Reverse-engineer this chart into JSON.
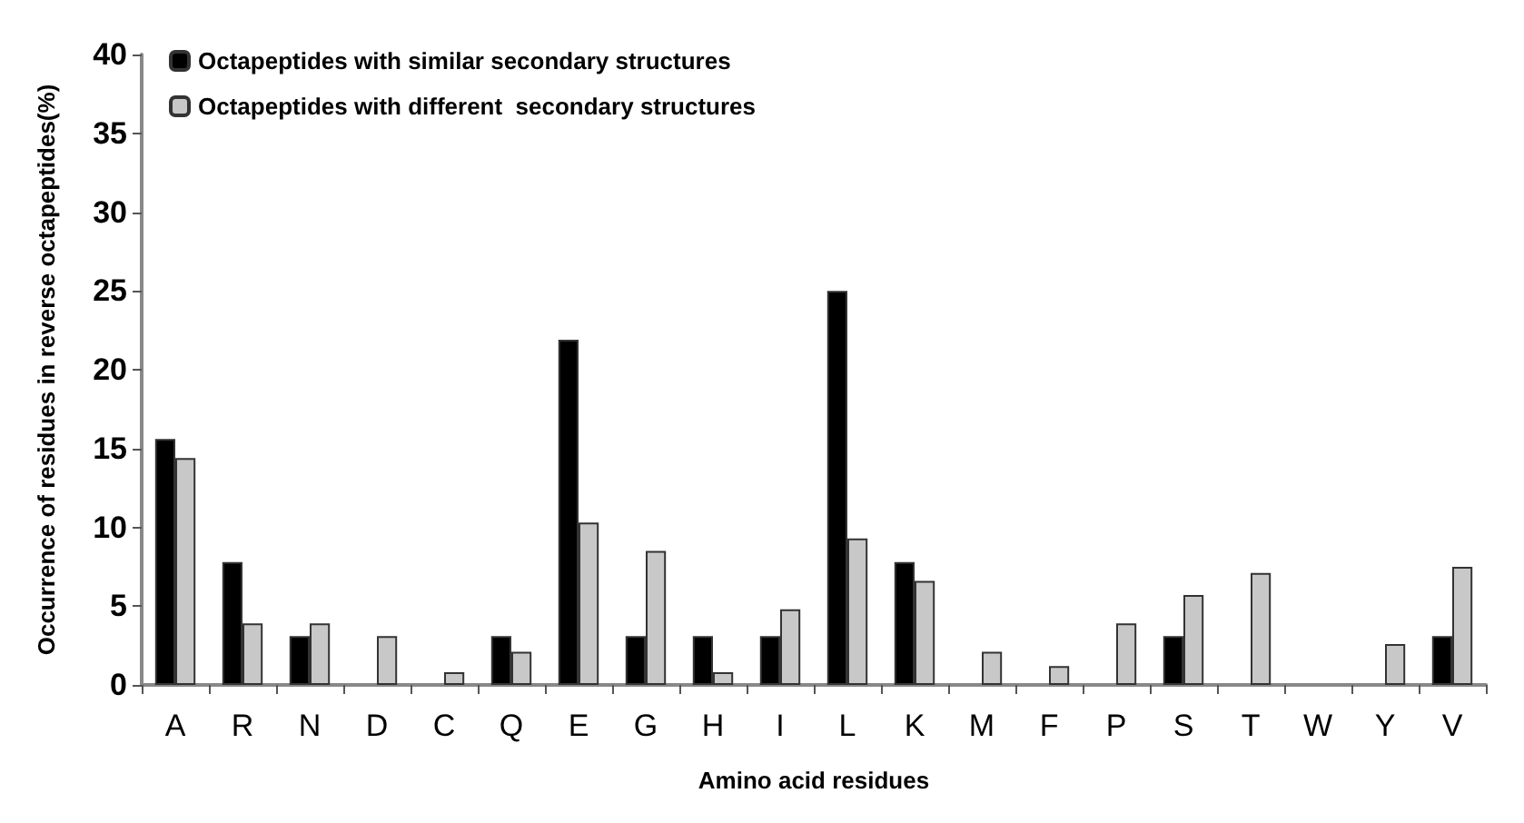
{
  "chart_data": {
    "type": "bar",
    "xlabel": "Amino acid residues",
    "ylabel": "Occurrence of residues in reverse octapeptides(%)",
    "categories": [
      "A",
      "R",
      "N",
      "D",
      "C",
      "Q",
      "E",
      "G",
      "H",
      "I",
      "L",
      "K",
      "M",
      "F",
      "P",
      "S",
      "T",
      "W",
      "Y",
      "V"
    ],
    "series": [
      {
        "name": "Octapeptides with similar secondary structures",
        "color": "#000000",
        "values": [
          15.6,
          7.8,
          3.1,
          0,
          0,
          3.1,
          21.9,
          3.1,
          3.1,
          3.1,
          25.0,
          7.8,
          0,
          0,
          0,
          3.1,
          0,
          0,
          0,
          3.1
        ]
      },
      {
        "name": "Octapeptides with different  secondary structures",
        "color": "#c8c8c8",
        "values": [
          14.4,
          3.9,
          3.9,
          3.1,
          0.8,
          2.1,
          10.3,
          8.5,
          0.8,
          4.8,
          9.3,
          6.6,
          2.1,
          1.2,
          3.9,
          5.7,
          7.1,
          0,
          2.6,
          7.5
        ]
      }
    ],
    "ylim": [
      0,
      40
    ],
    "yticks": [
      0,
      5,
      10,
      15,
      20,
      25,
      30,
      35,
      40
    ],
    "grid": false,
    "legend": "top left"
  }
}
